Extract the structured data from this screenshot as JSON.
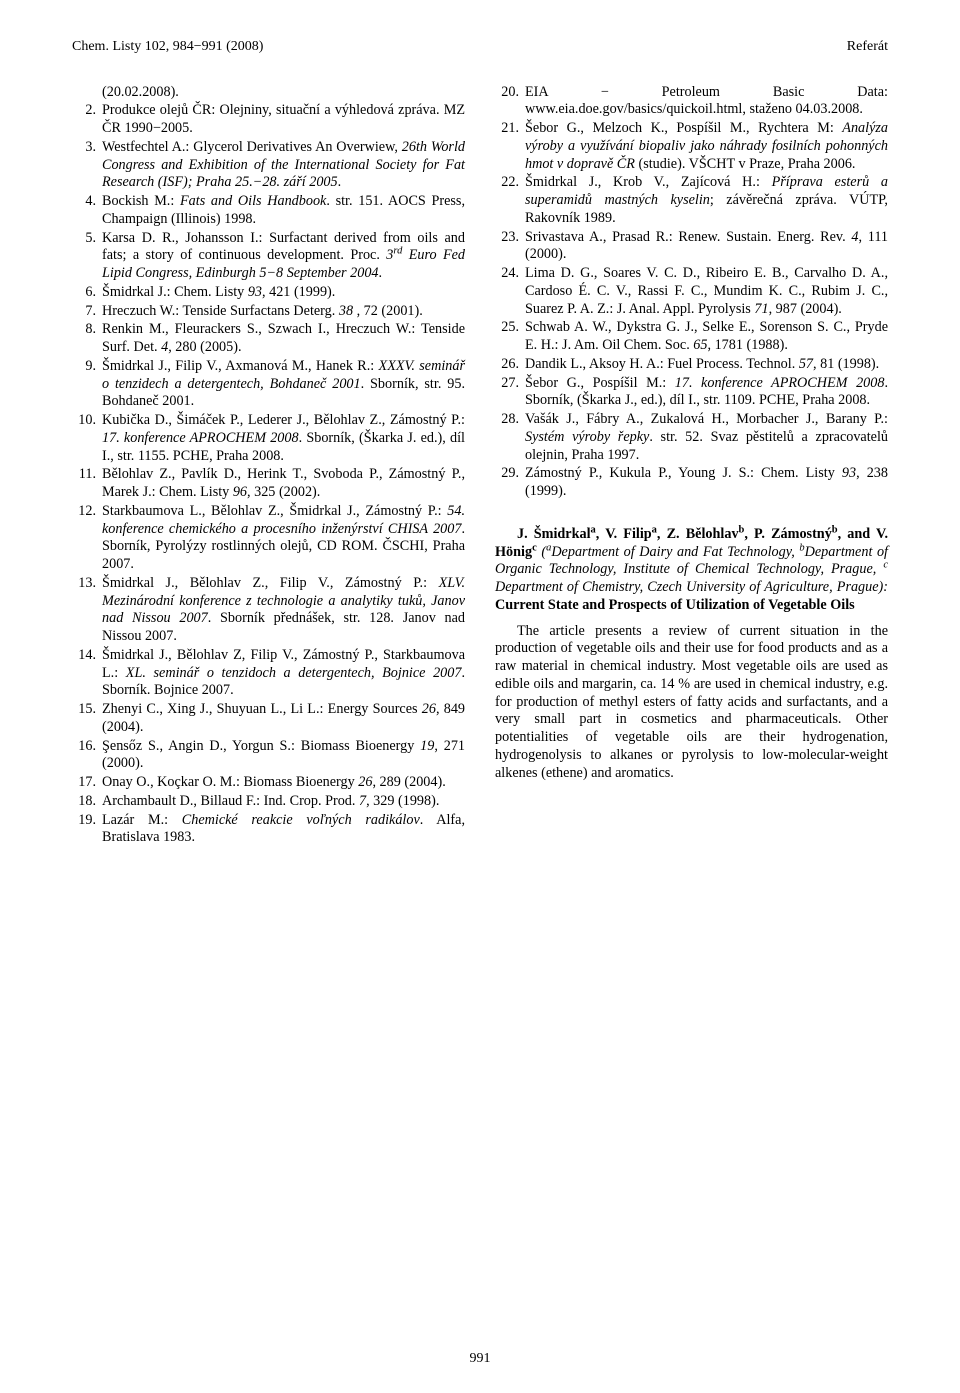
{
  "header": {
    "left": "Chem. Listy 102, 984−991 (2008)",
    "right": "Referát"
  },
  "left_refs": [
    {
      "num": "",
      "txt": "(20.02.2008)."
    },
    {
      "num": "2.",
      "txt": "Produkce olejů ČR: Olejniny, situační a výhledová zpráva. MZ ČR 1990−2005."
    },
    {
      "num": "3.",
      "txt": "Westfechtel A.: Glycerol Derivatives An Overwiew, <span class='ital'>26th World Congress and Exhibition of the International Society for Fat Research (ISF); Praha 25.−28. září 2005</span>."
    },
    {
      "num": "4.",
      "txt": "Bockish M.: <span class='ital'>Fats and Oils Handbook</span>. str. 151. AOCS Press, Champaign (Illinois) 1998."
    },
    {
      "num": "5.",
      "txt": "Karsa D. R., Johansson I.: Surfactant derived from oils and fats; a story of continuous development. Proc. <span class='ital'>3<span class='sup'>rd</span> Euro Fed Lipid Congress, Edinburgh 5−8 September 2004</span>."
    },
    {
      "num": "6.",
      "txt": "Šmidrkal J.: Chem. Listy <span class='ital'>93</span>, 421 (1999)."
    },
    {
      "num": "7.",
      "txt": "Hreczuch W.: Tenside Surfactans Deterg. <span class='ital'>38</span> , 72 (2001)."
    },
    {
      "num": "8.",
      "txt": "Renkin M., Fleurackers S., Szwach I., Hreczuch W.: Tenside Surf. Det. <span class='ital'>4</span>, 280 (2005)."
    },
    {
      "num": "9.",
      "txt": "Šmidrkal J., Filip V., Axmanová M., Hanek R.: <span class='ital'>XXXV. seminář o tenzidech a detergentech, Bohdaneč 2001</span>. Sborník, str. 95. Bohdaneč 2001."
    },
    {
      "num": "10.",
      "txt": "Kubička D., Šimáček P., Lederer J., Bělohlav Z., Zámostný P.: <span class='ital'>17. konference APROCHEM 2008</span>. Sborník, (Škarka J. ed.), díl I., str. 1155. PCHE, Praha 2008."
    },
    {
      "num": "11.",
      "txt": "Bělohlav Z., Pavlík D., Herink T., Svoboda P., Zámostný P., Marek J.: Chem. Listy <span class='ital'>96</span>, 325 (2002)."
    },
    {
      "num": "12.",
      "txt": "Starkbaumova L., Bělohlav Z., Šmidrkal J., Zámostný P.: <span class='ital'>54. konference chemického a procesního inženýrství CHISA 2007</span>. Sborník, Pyrolýzy rostlinných olejů, CD ROM. ČSCHI, Praha 2007."
    },
    {
      "num": "13.",
      "txt": "Šmidrkal J., Bělohlav Z., Filip V., Zámostný P.: <span class='ital'>XLV. Mezinárodní konference z technologie a analytiky tuků, Janov nad Nissou 2007</span>. Sborník přednášek, str. 128. Janov nad Nissou 2007."
    },
    {
      "num": "14.",
      "txt": "Šmidrkal J., Bělohlav Z, Filip V., Zámostný P., Starkbaumova L.: <span class='ital'>XL. seminář o tenzidoch a detergentech, Bojnice 2007</span>. Sborník. Bojnice 2007."
    },
    {
      "num": "15.",
      "txt": "Zhenyi C., Xing J., Shuyuan L., Li L.: Energy Sources <span class='ital'>26</span>, 849 (2004)."
    },
    {
      "num": "16.",
      "txt": "Şensőz S., Angin D., Yorgun S.: Biomass Bioenergy <span class='ital'>19</span>, 271 (2000)."
    },
    {
      "num": "17.",
      "txt": "Onay O., Koçkar O. M.: Biomass Bioenergy <span class='ital'>26</span>, 289 (2004)."
    },
    {
      "num": "18.",
      "txt": "Archambault D., Billaud F.: Ind. Crop. Prod. <span class='ital'>7</span>, 329 (1998)."
    },
    {
      "num": "19.",
      "txt": "Lazár M.: <span class='ital'>Chemické reakcie voľných radikálov</span>. Alfa, Bratislava 1983."
    }
  ],
  "right_refs": [
    {
      "num": "20.",
      "txt": "EIA − Petroleum Basic Data: www.eia.doe.gov/basics/quickoil.html, staženo 04.03.2008."
    },
    {
      "num": "21.",
      "txt": "Šebor G., Melzoch K., Pospíšil M., Rychtera M: <span class='ital'>Analýza výroby a využívání biopaliv jako náhrady fosilních pohonných hmot v dopravě ČR</span> (studie). VŠCHT v Praze, Praha 2006."
    },
    {
      "num": "22.",
      "txt": "Šmidrkal J., Krob V., Zajícová H.: <span class='ital'>Příprava esterů a superamidů mastných kyselin</span>; závěrečná zpráva. VÚTP, Rakovník 1989."
    },
    {
      "num": "23.",
      "txt": "Srivastava A., Prasad R.: Renew. Sustain. Energ. Rev. <span class='ital'>4</span>, 111 (2000)."
    },
    {
      "num": "24.",
      "txt": "Lima D. G., Soares V. C. D., Ribeiro E. B., Carvalho D. A., Cardoso É. C. V., Rassi F. C., Mundim K. C., Rubim J. C., Suarez P. A. Z.: J. Anal. Appl. Pyrolysis <span class='ital'>71</span>, 987 (2004)."
    },
    {
      "num": "25.",
      "txt": "Schwab A. W., Dykstra G. J., Selke E., Sorenson S. C., Pryde E. H.: J. Am. Oil Chem. Soc. <span class='ital'>65</span>, 1781 (1988)."
    },
    {
      "num": "26.",
      "txt": "Dandik L., Aksoy H. A.: Fuel Process. Technol. <span class='ital'>57</span>, 81 (1998)."
    },
    {
      "num": "27.",
      "txt": "Šebor G., Pospíšil M.: <span class='ital'>17. konference APROCHEM 2008</span>. Sborník, (Škarka J., ed.), díl I., str. 1109. PCHE, Praha 2008."
    },
    {
      "num": "28.",
      "txt": "Vašák J., Fábry A., Zukalová H., Morbacher J., Barany P.: <span class='ital'>Systém výroby řepky</span>. str. 52. Svaz pěstitelů a zpracovatelů olejnin, Praha 1997."
    },
    {
      "num": "29.",
      "txt": "Zámostný P., Kukula P., Young J. S.: Chem. Listy <span class='ital'>93</span>, 238 (1999)."
    }
  ],
  "abstract": {
    "authors_html": "<span class='bold'>J. Šmidrkal<span class='sup'>a</span>, V. Filip<span class='sup'>a</span>, Z. Bělohlav<span class='sup'>b</span>, P. Zámostný<span class='sup'>b</span>, and V. Hönig<span class='sup'>c</span></span> <span class='ital'>(<span class='sup'>a</span>Department of Dairy and Fat Technology, <span class='sup'>b</span>Department of Organic Technology, Institute of Chemical Technology, Prague, <span class='sup'>c</span> Department of Chemistry, Czech University of Agriculture, Prague):</span> <span class='bold'>Current State and Prospects of Utilization of Vegetable Oils</span>",
    "body": "The article presents a review of current situation in the production of vegetable oils and their use for food products and as a raw material in chemical industry. Most vegetable oils are used as edible oils and margarin, ca. 14 % are used in chemical industry, e.g. for production of methyl esters of fatty acids and surfactants, and a very small part in cosmetics and pharmaceuticals. Other potentialities of vegetable oils are their hydrogenation, hydrogenolysis to alkanes or pyrolysis to low-molecular-weight alkenes (ethene) and aromatics."
  },
  "pagenum": "991"
}
